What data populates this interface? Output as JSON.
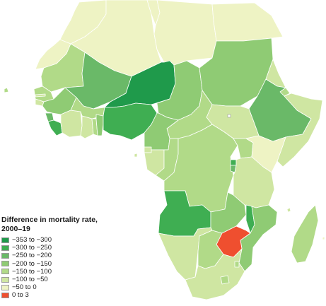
{
  "legend": {
    "title_line1": "Difference in mortality rate,",
    "title_line2": "2000–19",
    "items": [
      {
        "label": "−353 to −300",
        "color": "#1f9a4b"
      },
      {
        "label": "−300 to −250",
        "color": "#3fae52"
      },
      {
        "label": "−250 to −200",
        "color": "#6ab968"
      },
      {
        "label": "−200 to −150",
        "color": "#8fcb74"
      },
      {
        "label": "−150 to −100",
        "color": "#b1da88"
      },
      {
        "label": "−100 to −50",
        "color": "#cfe6a2"
      },
      {
        "label": "−50 to 0",
        "color": "#eef3c4"
      },
      {
        "label": "0 to 3",
        "color": "#ef4f2f"
      }
    ]
  }
}
